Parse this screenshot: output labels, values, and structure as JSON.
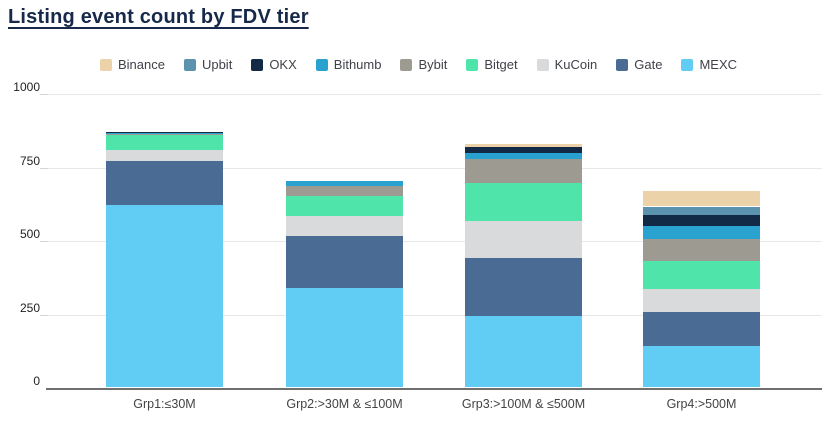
{
  "title": "Listing event count by FDV tier",
  "chart_data": {
    "type": "bar",
    "subtype": "stacked-vertical",
    "title": "Listing event count by FDV tier",
    "categories": [
      "Grp1:≤30M",
      "Grp2:>30M & ≤100M",
      "Grp3:>100M & ≤500M",
      "Grp4:>500M"
    ],
    "series": [
      {
        "name": "Binance",
        "color": "#ecd2a8",
        "values": [
          0,
          0,
          8,
          53
        ]
      },
      {
        "name": "Upbit",
        "color": "#5b92ad",
        "values": [
          0,
          0,
          0,
          30
        ]
      },
      {
        "name": "OKX",
        "color": "#122a45",
        "values": [
          5,
          0,
          22,
          36
        ]
      },
      {
        "name": "Bithumb",
        "color": "#29a2d0",
        "values": [
          2,
          17,
          20,
          45
        ]
      },
      {
        "name": "Bybit",
        "color": "#9d9b91",
        "values": [
          3,
          34,
          82,
          76
        ]
      },
      {
        "name": "Bitget",
        "color": "#4fe5aa",
        "values": [
          54,
          68,
          130,
          94
        ]
      },
      {
        "name": "KuCoin",
        "color": "#d8dadc",
        "values": [
          37,
          68,
          125,
          79
        ]
      },
      {
        "name": "Gate",
        "color": "#4a6b94",
        "values": [
          148,
          176,
          199,
          116
        ]
      },
      {
        "name": "MEXC",
        "color": "#61ccf4",
        "values": [
          620,
          337,
          240,
          138
        ]
      }
    ],
    "stack_order_bottom_to_top": [
      "MEXC",
      "Gate",
      "KuCoin",
      "Bitget",
      "Bybit",
      "Bithumb",
      "OKX",
      "Upbit",
      "Binance"
    ],
    "totals": [
      869,
      700,
      826,
      667
    ],
    "xlabel": "",
    "ylabel": "",
    "ylim": [
      0,
      1000
    ],
    "yticks": [
      0,
      250,
      500,
      750,
      1000
    ],
    "grid": true,
    "legend_position": "top"
  },
  "colors": {
    "title": "#16294a",
    "gridline": "#e7e7e7",
    "axis_line": "#6f6f6f",
    "background": "#ffffff"
  }
}
